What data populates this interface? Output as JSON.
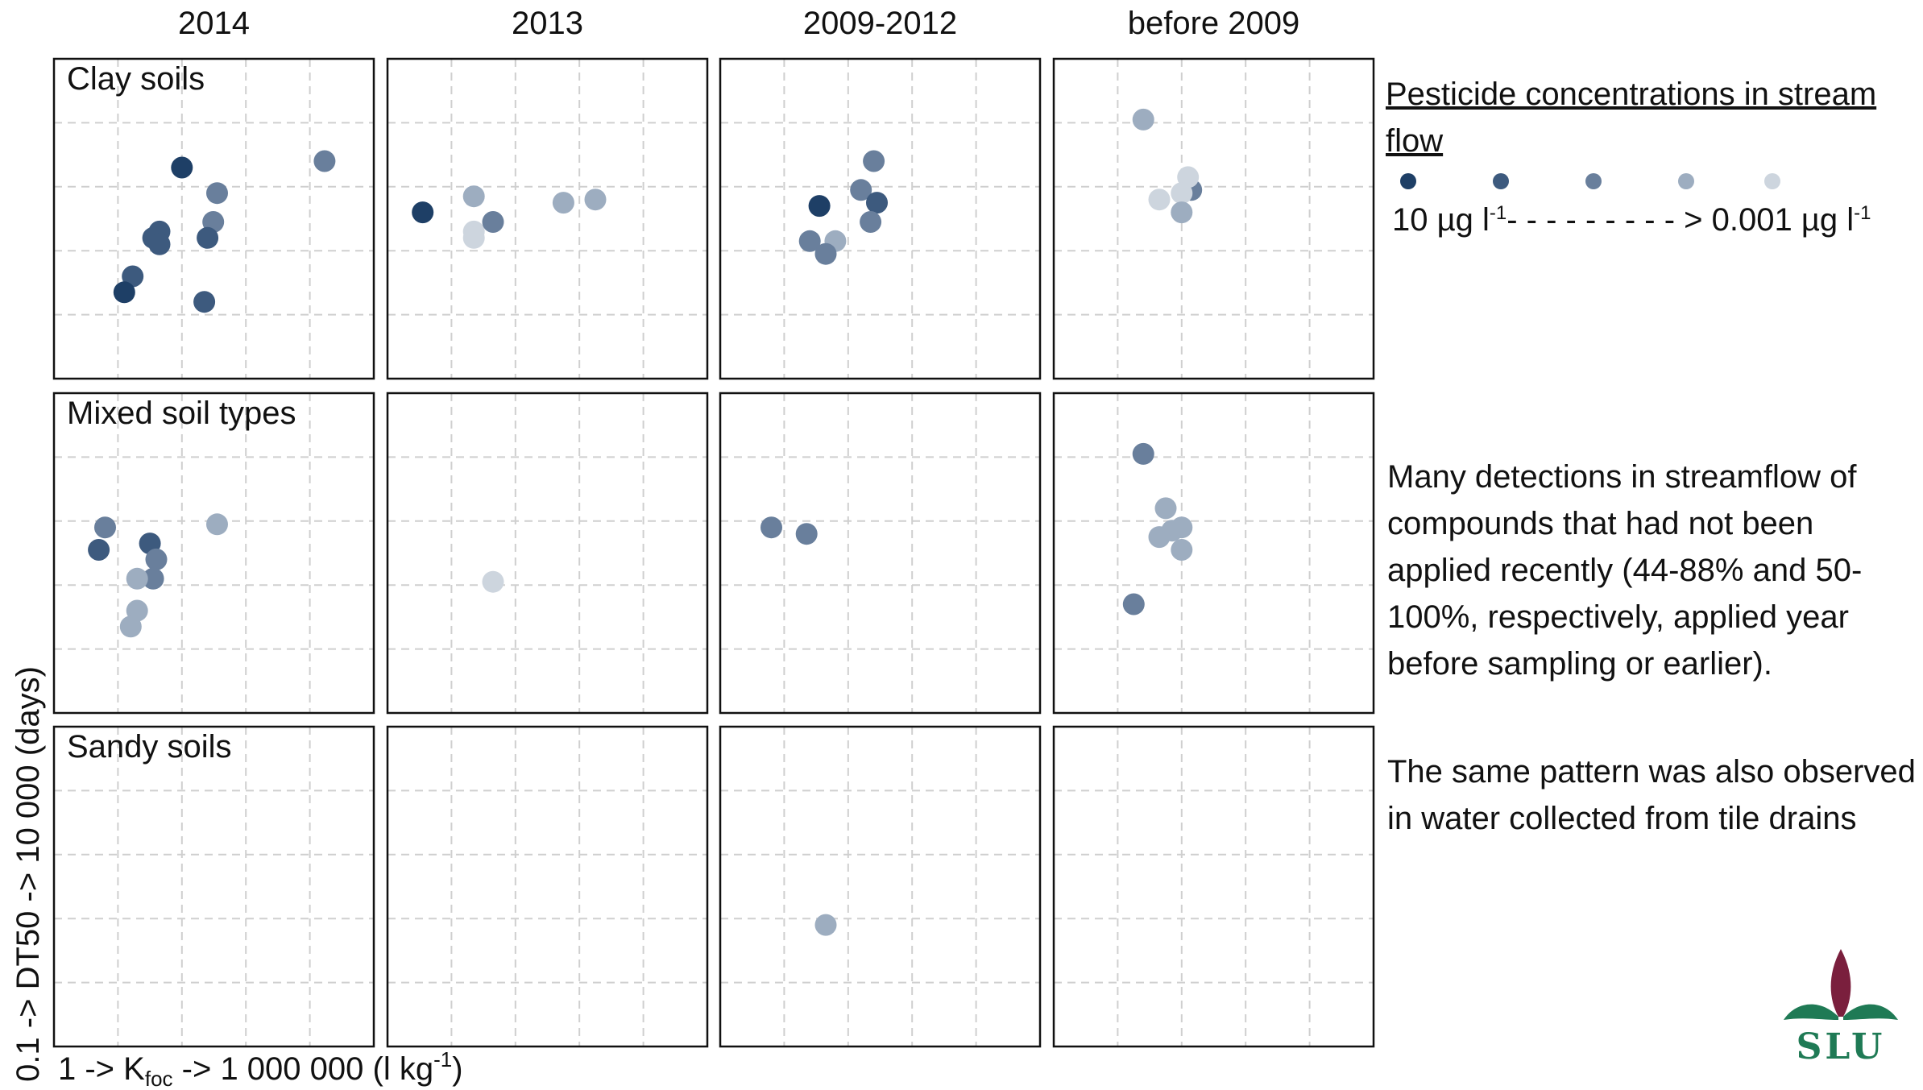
{
  "chart_data": {
    "type": "scatter",
    "subtype": "small-multiples",
    "columns": [
      "2014",
      "2013",
      "2009-2012",
      "before 2009"
    ],
    "rows": [
      "Clay soils",
      "Mixed soil types",
      "Sandy soils"
    ],
    "xlabel": {
      "pre": "1 -> K",
      "sub": "foc",
      "mid": " -> 1 000 000 (l kg",
      "sup": "-1",
      "post": ")"
    },
    "ylabel": "0.1 -> DT50 -> 10 000 (days)",
    "xlim": [
      0,
      5
    ],
    "ylim": [
      0,
      5
    ],
    "grid": true,
    "color_scale": {
      "0": "#1e3f66",
      "1": "#3d5a7e",
      "2": "#697f9c",
      "3": "#9dadc0",
      "4": "#cdd5de"
    },
    "panels": [
      {
        "row": 0,
        "col": 0,
        "points": [
          {
            "x": 2.0,
            "y": 3.3,
            "c": 0
          },
          {
            "x": 4.23,
            "y": 3.4,
            "c": 2
          },
          {
            "x": 2.55,
            "y": 2.9,
            "c": 2
          },
          {
            "x": 2.49,
            "y": 2.45,
            "c": 2
          },
          {
            "x": 1.65,
            "y": 2.3,
            "c": 1
          },
          {
            "x": 1.55,
            "y": 2.2,
            "c": 1
          },
          {
            "x": 1.65,
            "y": 2.1,
            "c": 1
          },
          {
            "x": 2.4,
            "y": 2.2,
            "c": 1
          },
          {
            "x": 1.23,
            "y": 1.6,
            "c": 1
          },
          {
            "x": 1.1,
            "y": 1.35,
            "c": 0
          },
          {
            "x": 2.35,
            "y": 1.2,
            "c": 1
          }
        ]
      },
      {
        "row": 0,
        "col": 1,
        "points": [
          {
            "x": 1.35,
            "y": 2.85,
            "c": 3
          },
          {
            "x": 2.75,
            "y": 2.75,
            "c": 3
          },
          {
            "x": 3.25,
            "y": 2.8,
            "c": 3
          },
          {
            "x": 0.55,
            "y": 2.6,
            "c": 0
          },
          {
            "x": 1.35,
            "y": 2.3,
            "c": 4
          },
          {
            "x": 1.65,
            "y": 2.45,
            "c": 2
          },
          {
            "x": 1.35,
            "y": 2.2,
            "c": 4
          }
        ]
      },
      {
        "row": 0,
        "col": 2,
        "points": [
          {
            "x": 2.4,
            "y": 3.4,
            "c": 2
          },
          {
            "x": 2.2,
            "y": 2.95,
            "c": 2
          },
          {
            "x": 1.55,
            "y": 2.7,
            "c": 0
          },
          {
            "x": 2.45,
            "y": 2.75,
            "c": 1
          },
          {
            "x": 2.35,
            "y": 2.45,
            "c": 2
          },
          {
            "x": 1.4,
            "y": 2.15,
            "c": 2
          },
          {
            "x": 1.8,
            "y": 2.15,
            "c": 3
          },
          {
            "x": 1.65,
            "y": 1.95,
            "c": 2
          }
        ]
      },
      {
        "row": 0,
        "col": 3,
        "points": [
          {
            "x": 1.4,
            "y": 4.05,
            "c": 3
          },
          {
            "x": 2.15,
            "y": 2.95,
            "c": 2
          },
          {
            "x": 2.1,
            "y": 3.15,
            "c": 4
          },
          {
            "x": 2.0,
            "y": 2.9,
            "c": 4
          },
          {
            "x": 1.65,
            "y": 2.8,
            "c": 4
          },
          {
            "x": 2.0,
            "y": 2.6,
            "c": 3
          }
        ]
      },
      {
        "row": 1,
        "col": 0,
        "points": [
          {
            "x": 0.8,
            "y": 2.9,
            "c": 2
          },
          {
            "x": 2.55,
            "y": 2.95,
            "c": 3
          },
          {
            "x": 0.7,
            "y": 2.55,
            "c": 1
          },
          {
            "x": 1.5,
            "y": 2.65,
            "c": 1
          },
          {
            "x": 1.6,
            "y": 2.4,
            "c": 2
          },
          {
            "x": 1.55,
            "y": 2.1,
            "c": 2
          },
          {
            "x": 1.3,
            "y": 2.1,
            "c": 3
          },
          {
            "x": 1.3,
            "y": 1.6,
            "c": 3
          },
          {
            "x": 1.2,
            "y": 1.35,
            "c": 3
          }
        ]
      },
      {
        "row": 1,
        "col": 1,
        "points": [
          {
            "x": 1.65,
            "y": 2.05,
            "c": 4
          }
        ]
      },
      {
        "row": 1,
        "col": 2,
        "points": [
          {
            "x": 0.8,
            "y": 2.9,
            "c": 2
          },
          {
            "x": 1.35,
            "y": 2.8,
            "c": 2
          }
        ]
      },
      {
        "row": 1,
        "col": 3,
        "points": [
          {
            "x": 1.4,
            "y": 4.05,
            "c": 2
          },
          {
            "x": 1.75,
            "y": 3.2,
            "c": 3
          },
          {
            "x": 2.0,
            "y": 2.9,
            "c": 3
          },
          {
            "x": 1.85,
            "y": 2.85,
            "c": 3
          },
          {
            "x": 1.65,
            "y": 2.75,
            "c": 3
          },
          {
            "x": 2.0,
            "y": 2.55,
            "c": 3
          },
          {
            "x": 1.25,
            "y": 1.7,
            "c": 2
          }
        ]
      },
      {
        "row": 2,
        "col": 0,
        "points": []
      },
      {
        "row": 2,
        "col": 1,
        "points": []
      },
      {
        "row": 2,
        "col": 2,
        "points": [
          {
            "x": 1.65,
            "y": 1.9,
            "c": 3
          }
        ]
      },
      {
        "row": 2,
        "col": 3,
        "points": []
      }
    ]
  },
  "legend": {
    "title": "Pesticide concentrations in stream flow",
    "low_label": {
      "pre": "10 µg l",
      "sup": "-1",
      "mid": "- - - - - - - - - > 0.001 µg l",
      "sup2": "-1"
    }
  },
  "notes": [
    "Many detections in streamflow of compounds that had not been applied recently (44-88% and 50-100%, respectively, applied year before sampling or earlier).",
    "The same pattern was also observed in water collected from tile drains"
  ],
  "logo": {
    "text": "SLU",
    "green": "#1f7a55",
    "maroon": "#7a1f3d"
  }
}
